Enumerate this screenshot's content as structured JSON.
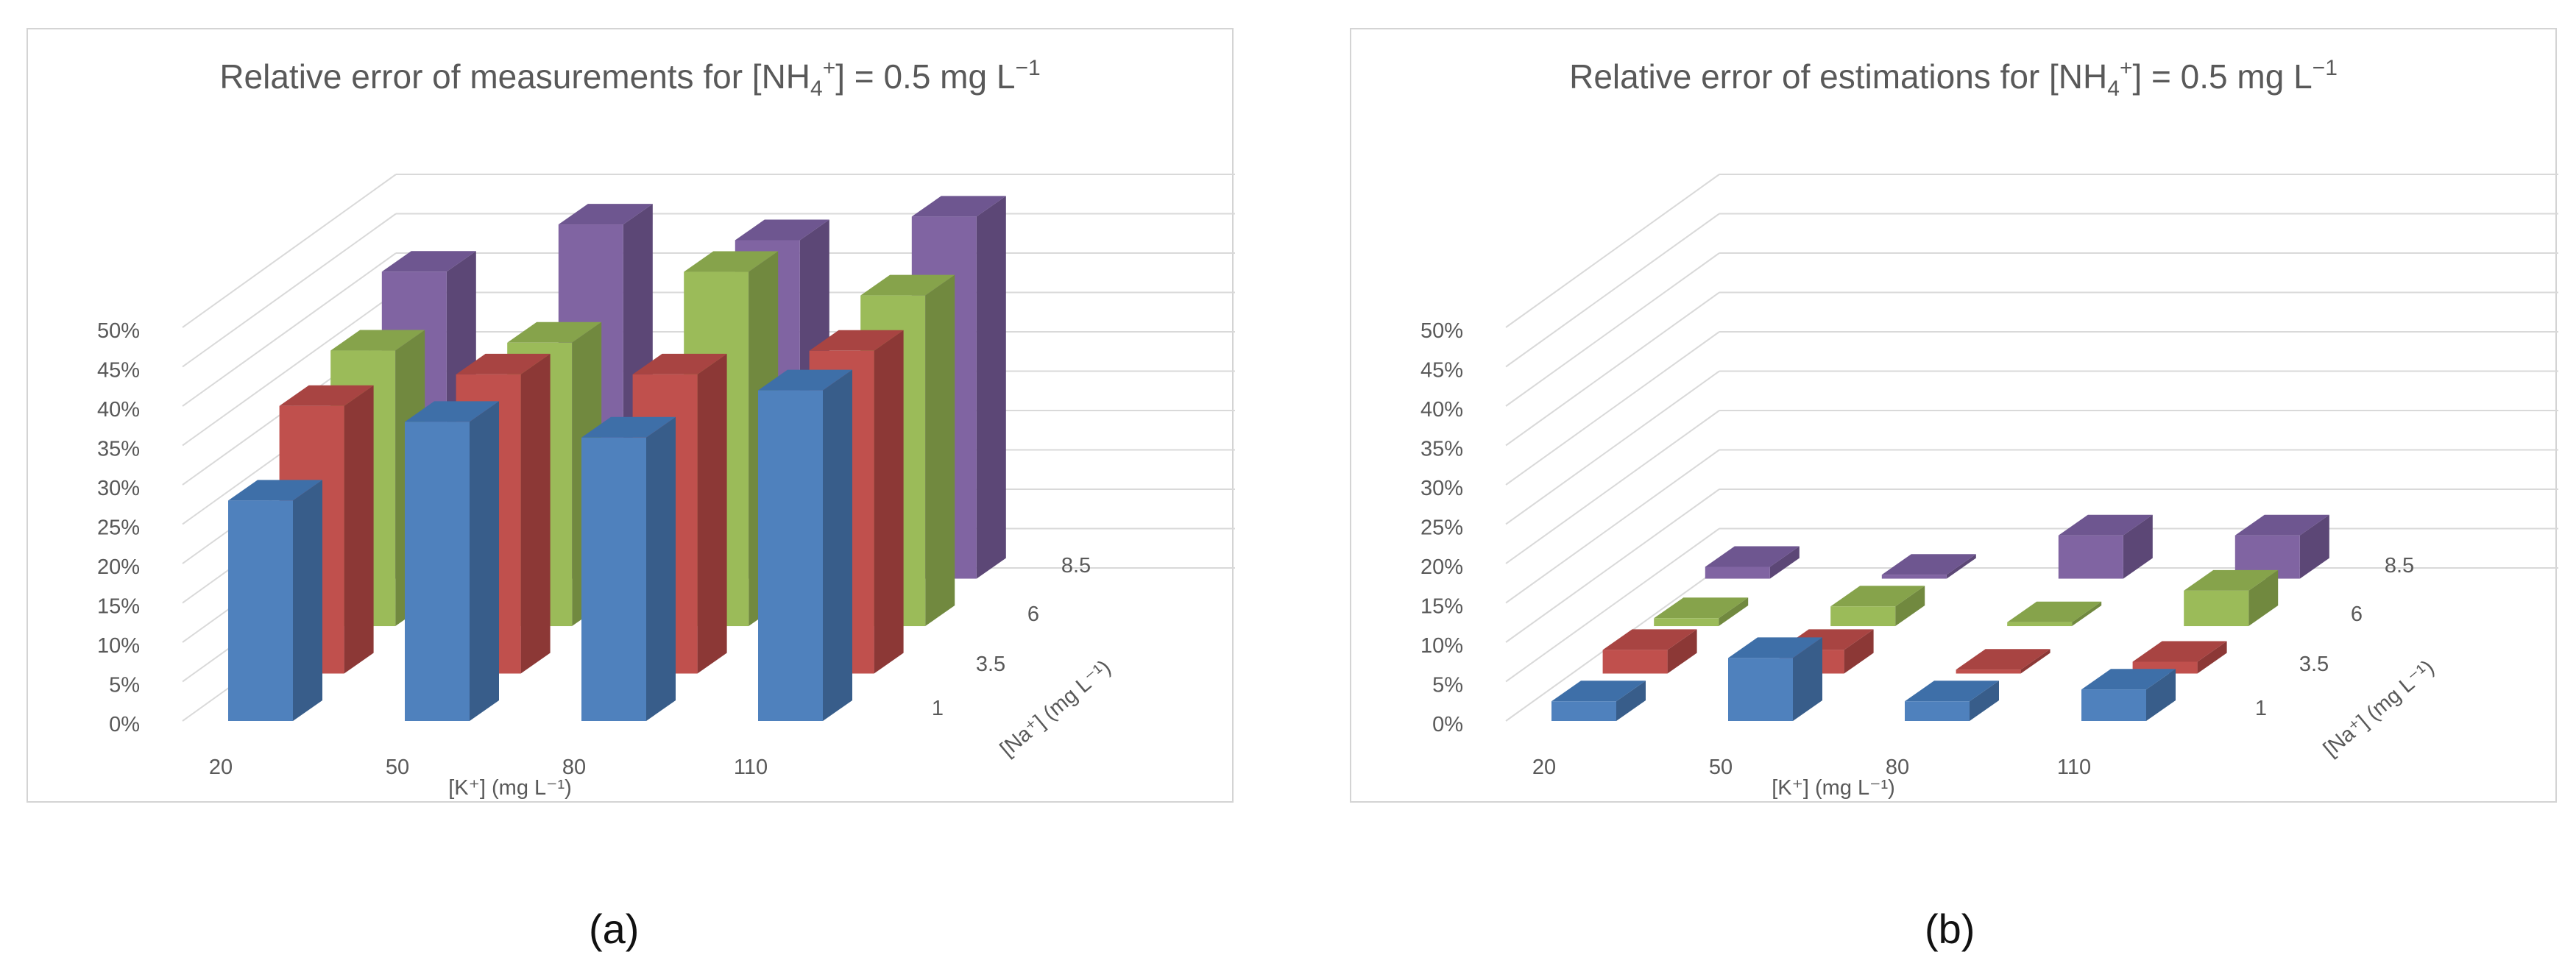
{
  "figure": {
    "caption_a": "(a)",
    "caption_b": "(b)"
  },
  "series_colors": {
    "1": {
      "front": "#4f81bd",
      "side": "#385d8a",
      "top": "#3e6fa8"
    },
    "3.5": {
      "front": "#c0504d",
      "side": "#8c3836",
      "top": "#a84442"
    },
    "6": {
      "front": "#9bbb59",
      "side": "#71893f",
      "top": "#86a34b"
    },
    "8.5": {
      "front": "#8064a2",
      "side": "#5c4776",
      "top": "#6e5690"
    }
  },
  "chart_data": [
    {
      "type": "bar",
      "title_main": "Relative error of measurements for [NH",
      "title_sub": "4",
      "title_sup": "+",
      "title_end": "] = 0.5 mg L",
      "title_exp": "−1",
      "xlabel": "[K⁺] (mg L⁻¹)",
      "zlabel": "[Na⁺] (mg L⁻¹)",
      "categories": [
        "20",
        "50",
        "80",
        "110"
      ],
      "depth_labels": [
        "1",
        "3.5",
        "6",
        "8.5"
      ],
      "y_ticks": [
        "0%",
        "5%",
        "10%",
        "15%",
        "20%",
        "25%",
        "30%",
        "35%",
        "40%",
        "45%",
        "50%"
      ],
      "ylim": [
        0,
        50
      ],
      "series": [
        {
          "name": "1",
          "values": [
            28,
            38,
            36,
            42
          ]
        },
        {
          "name": "3.5",
          "values": [
            34,
            38,
            38,
            41
          ]
        },
        {
          "name": "6",
          "values": [
            35,
            36,
            45,
            42
          ]
        },
        {
          "name": "8.5",
          "values": [
            39,
            45,
            43,
            46
          ]
        }
      ]
    },
    {
      "type": "bar",
      "title_main": "Relative error of estimations for [NH",
      "title_sub": "4",
      "title_sup": "+",
      "title_end": "] = 0.5 mg L",
      "title_exp": "−1",
      "xlabel": "[K⁺] (mg L⁻¹)",
      "zlabel": "[Na⁺] (mg L⁻¹)",
      "categories": [
        "20",
        "50",
        "80",
        "110"
      ],
      "depth_labels": [
        "1",
        "3.5",
        "6",
        "8.5"
      ],
      "y_ticks": [
        "0%",
        "5%",
        "10%",
        "15%",
        "20%",
        "25%",
        "30%",
        "35%",
        "40%",
        "45%",
        "50%"
      ],
      "ylim": [
        0,
        50
      ],
      "series": [
        {
          "name": "1",
          "values": [
            2.5,
            8,
            2.5,
            4
          ]
        },
        {
          "name": "3.5",
          "values": [
            3,
            3,
            0.5,
            1.5
          ]
        },
        {
          "name": "6",
          "values": [
            1,
            2.5,
            0.5,
            4.5
          ]
        },
        {
          "name": "8.5",
          "values": [
            1.5,
            0.5,
            5.5,
            5.5
          ]
        }
      ]
    }
  ]
}
